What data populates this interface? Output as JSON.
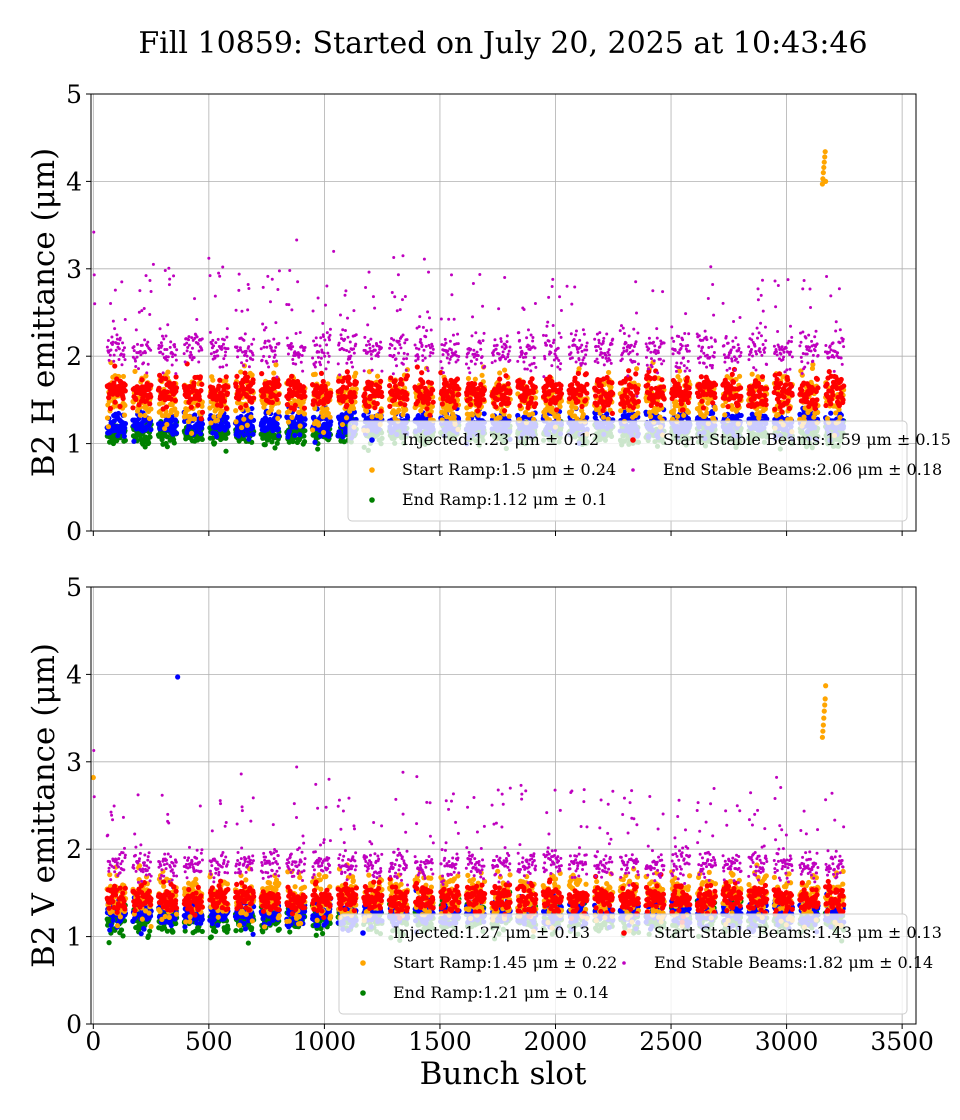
{
  "figure": {
    "title": "Fill 10859: Started on July 20, 2025 at 10:43:46",
    "xlabel": "Bunch slot"
  },
  "colors": {
    "injected": "#0000ff",
    "start_ramp": "#ffa500",
    "end_ramp": "#008000",
    "start_stable": "#ff0000",
    "end_stable": "#bf00bf",
    "grid": "#b0b0b0"
  },
  "chart_data": [
    {
      "type": "scatter",
      "ylabel": "B2 H emittance (μm)",
      "xlim": [
        -10,
        3560
      ],
      "ylim": [
        0,
        5
      ],
      "xticks": [
        "0",
        "500",
        "1000",
        "1500",
        "2000",
        "2500",
        "3000",
        "3500"
      ],
      "yticks": [
        "0",
        "1",
        "2",
        "3",
        "4",
        "5"
      ],
      "grid": true,
      "legend_position": "lower-right",
      "series": [
        {
          "key": "injected",
          "name": "Injected:1.23 μm ± 0.12",
          "mean": 1.23,
          "std": 0.12
        },
        {
          "key": "start_ramp",
          "name": "Start Ramp:1.5 μm ± 0.24",
          "mean": 1.5,
          "std": 0.24
        },
        {
          "key": "end_ramp",
          "name": "End Ramp:1.12 μm ± 0.1",
          "mean": 1.12,
          "std": 0.1
        },
        {
          "key": "start_stable",
          "name": "Start Stable Beams:1.59 μm ± 0.15",
          "mean": 1.59,
          "std": 0.15
        },
        {
          "key": "end_stable",
          "name": "End Stable Beams:2.06 μm ± 0.18",
          "mean": 2.06,
          "std": 0.18
        }
      ],
      "outliers": [
        {
          "series": "start_ramp",
          "x": [
            3155,
            3157,
            3159,
            3161,
            3163,
            3165,
            3167,
            3169
          ],
          "y": [
            3.97,
            4.03,
            4.1,
            4.16,
            4.22,
            4.28,
            4.34,
            4.0
          ]
        },
        {
          "series": "end_stable",
          "x": [
            2,
            4,
            6,
            260,
            500,
            560,
            670,
            850,
            880,
            1040,
            1300,
            1340,
            1550,
            1780,
            2050,
            2680,
            2950,
            3070
          ],
          "y": [
            3.42,
            2.93,
            2.6,
            3.05,
            3.12,
            3.02,
            2.82,
            2.98,
            3.33,
            3.2,
            3.13,
            3.15,
            2.93,
            2.9,
            2.8,
            2.82,
            2.86,
            2.77
          ]
        }
      ]
    },
    {
      "type": "scatter",
      "ylabel": "B2 V emittance (μm)",
      "xlim": [
        -10,
        3560
      ],
      "ylim": [
        0,
        5
      ],
      "xticks": [
        "0",
        "500",
        "1000",
        "1500",
        "2000",
        "2500",
        "3000",
        "3500"
      ],
      "yticks": [
        "0",
        "1",
        "2",
        "3",
        "4",
        "5"
      ],
      "grid": true,
      "legend_position": "lower-right",
      "series": [
        {
          "key": "injected",
          "name": "Injected:1.27 μm ± 0.13",
          "mean": 1.27,
          "std": 0.13
        },
        {
          "key": "start_ramp",
          "name": "Start Ramp:1.45 μm ± 0.22",
          "mean": 1.45,
          "std": 0.22
        },
        {
          "key": "end_ramp",
          "name": "End Ramp:1.21 μm ± 0.14",
          "mean": 1.21,
          "std": 0.14
        },
        {
          "key": "start_stable",
          "name": "Start Stable Beams:1.43 μm ± 0.13",
          "mean": 1.43,
          "std": 0.13
        },
        {
          "key": "end_stable",
          "name": "End Stable Beams:1.82 μm ± 0.14",
          "mean": 1.82,
          "std": 0.14
        }
      ],
      "outliers": [
        {
          "series": "injected",
          "x": [
            365
          ],
          "y": [
            3.97
          ]
        },
        {
          "series": "start_ramp",
          "x": [
            0,
            3155,
            3157,
            3159,
            3161,
            3163,
            3165,
            3167,
            3169
          ],
          "y": [
            2.82,
            3.28,
            3.35,
            3.42,
            3.5,
            3.58,
            3.65,
            3.72,
            3.87
          ]
        },
        {
          "series": "end_stable",
          "x": [
            2,
            4,
            640,
            880,
            1020,
            1340,
            1400,
            1550,
            2950
          ],
          "y": [
            3.13,
            2.6,
            2.86,
            2.94,
            2.8,
            2.88,
            2.83,
            2.55,
            2.58
          ]
        }
      ]
    }
  ]
}
